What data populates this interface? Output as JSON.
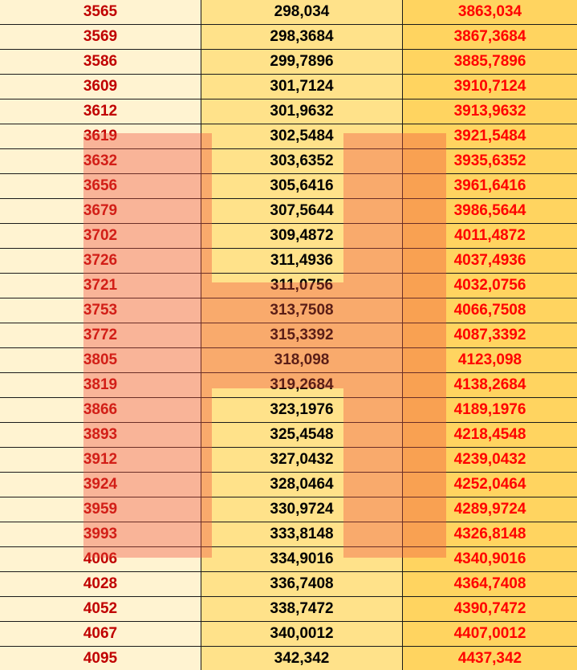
{
  "columns": [
    "",
    "",
    ""
  ],
  "rows": [
    [
      "3565",
      "298,034",
      "3863,034"
    ],
    [
      "3569",
      "298,3684",
      "3867,3684"
    ],
    [
      "3586",
      "299,7896",
      "3885,7896"
    ],
    [
      "3609",
      "301,7124",
      "3910,7124"
    ],
    [
      "3612",
      "301,9632",
      "3913,9632"
    ],
    [
      "3619",
      "302,5484",
      "3921,5484"
    ],
    [
      "3632",
      "303,6352",
      "3935,6352"
    ],
    [
      "3656",
      "305,6416",
      "3961,6416"
    ],
    [
      "3679",
      "307,5644",
      "3986,5644"
    ],
    [
      "3702",
      "309,4872",
      "4011,4872"
    ],
    [
      "3726",
      "311,4936",
      "4037,4936"
    ],
    [
      "3721",
      "311,0756",
      "4032,0756"
    ],
    [
      "3753",
      "313,7508",
      "4066,7508"
    ],
    [
      "3772",
      "315,3392",
      "4087,3392"
    ],
    [
      "3805",
      "318,098",
      "4123,098"
    ],
    [
      "3819",
      "319,2684",
      "4138,2684"
    ],
    [
      "3866",
      "323,1976",
      "4189,1976"
    ],
    [
      "3893",
      "325,4548",
      "4218,4548"
    ],
    [
      "3912",
      "327,0432",
      "4239,0432"
    ],
    [
      "3924",
      "328,0464",
      "4252,0464"
    ],
    [
      "3959",
      "330,9724",
      "4289,9724"
    ],
    [
      "3993",
      "333,8148",
      "4326,8148"
    ],
    [
      "4006",
      "334,9016",
      "4340,9016"
    ],
    [
      "4028",
      "336,7408",
      "4364,7408"
    ],
    [
      "4052",
      "338,7472",
      "4390,7472"
    ],
    [
      "4067",
      "340,0012",
      "4407,0012"
    ],
    [
      "4095",
      "342,342",
      "4437,342"
    ]
  ],
  "colors": {
    "col1_bg": "#fff3d1",
    "col1_text": "#c00000",
    "col2_bg": "#ffe28a",
    "col2_text": "#000000",
    "col3_bg": "#ffd460",
    "col3_text": "#ff0000",
    "watermark": "#f0503c"
  }
}
